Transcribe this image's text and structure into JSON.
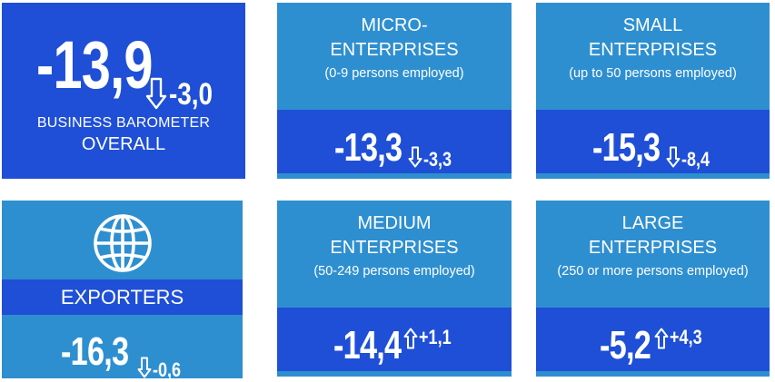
{
  "overall": {
    "value": "-13,9",
    "change": "-3,0",
    "direction": "down",
    "label_line1": "BUSINESS BAROMETER",
    "label_line2": "OVERALL"
  },
  "exporters": {
    "icon": "globe-icon",
    "label": "EXPORTERS",
    "value": "-16,3",
    "change": "-0,6",
    "direction": "down"
  },
  "segments": {
    "micro": {
      "title_line1": "MICRO-",
      "title_line2": "ENTERPRISES",
      "subtitle": "(0-9 persons employed)",
      "value": "-13,3",
      "change": "-3,3",
      "direction": "down"
    },
    "small": {
      "title_line1": "SMALL",
      "title_line2": "ENTERPRISES",
      "subtitle": "(up to 50 persons employed)",
      "value": "-15,3",
      "change": "-8,4",
      "direction": "down"
    },
    "medium": {
      "title_line1": "MEDIUM",
      "title_line2": "ENTERPRISES",
      "subtitle": "(50-249 persons employed)",
      "value": "-14,4",
      "change": "+1,1",
      "direction": "up"
    },
    "large": {
      "title_line1": "LARGE",
      "title_line2": "ENTERPRISES",
      "subtitle": "(250 or more persons employed)",
      "value": "-5,2",
      "change": "+4,3",
      "direction": "up"
    }
  },
  "colors": {
    "dark_blue": "#1f4fd6",
    "light_blue": "#2e8fd0",
    "text": "#ffffff"
  }
}
